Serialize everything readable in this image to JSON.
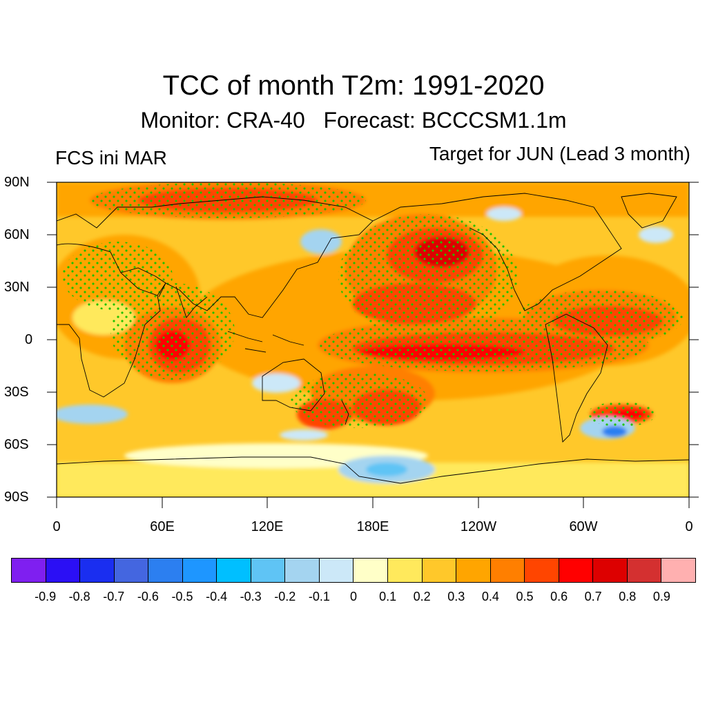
{
  "title": "TCC of month T2m: 1991-2020",
  "subtitle": "Monitor: CRA-40   Forecast: BCCCSM1.1m",
  "left_label": "FCS ini MAR",
  "right_label": "Target for JUN (Lead 3 month)",
  "lat_labels": [
    "90N",
    "60N",
    "30N",
    "0",
    "30S",
    "60S",
    "90S"
  ],
  "lon_labels": [
    "0",
    "60E",
    "120E",
    "180E",
    "120W",
    "60W",
    "0"
  ],
  "colorbar": {
    "colors": [
      "#7f1ff0",
      "#2b0ff5",
      "#1a2ef0",
      "#4466e0",
      "#2c7ff0",
      "#1e96ff",
      "#00bfff",
      "#5fc4f5",
      "#a4d4f0",
      "#cce8f8",
      "#ffffc8",
      "#ffe95c",
      "#ffc82a",
      "#ffa500",
      "#ff7f00",
      "#ff4500",
      "#ff0000",
      "#dd0000",
      "#d43030",
      "#ffb0b0"
    ],
    "labels": [
      "-0.9",
      "-0.8",
      "-0.7",
      "-0.6",
      "-0.5",
      "-0.4",
      "-0.3",
      "-0.2",
      "-0.1",
      "0",
      "0.1",
      "0.2",
      "0.3",
      "0.4",
      "0.5",
      "0.6",
      "0.7",
      "0.8",
      "0.9"
    ]
  },
  "stipple_color": "#22c000",
  "background_color": "#ffc82a"
}
